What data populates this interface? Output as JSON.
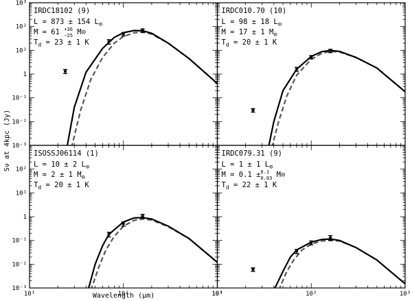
{
  "chart_data": {
    "type": "line",
    "xlabel": "Wavelength (μm)",
    "ylabel": "Sν at 4kpc (Jy)",
    "xscale": "log",
    "yscale": "log",
    "xlim": [
      10,
      1000
    ],
    "ylim": [
      0.001,
      1000
    ],
    "x_ticks": [
      "10¹",
      "10²",
      "10³"
    ],
    "y_ticks": [
      "10⁻³",
      "10⁻²",
      "10⁻¹",
      "1",
      "10¹",
      "10²",
      "10³"
    ],
    "series_styles": [
      {
        "style": "solid",
        "color": "#000000"
      },
      {
        "style": "dashed",
        "color": "#555555"
      }
    ],
    "panels": [
      {
        "title": "IRDC18102 (9)",
        "lines": [
          {
            "prefix": "L = ",
            "value": "873 ± 154 L",
            "sup": "",
            "sub": "",
            "unit": "⊙"
          },
          {
            "prefix": "M = ",
            "value": "61 ",
            "sup": "+36",
            "sub": "−25",
            "unit": " M⊙"
          },
          {
            "prefix": "T",
            "sub_d": "d",
            "value": " = 23 ± 1 K",
            "sup": "",
            "sub": "",
            "unit": ""
          }
        ],
        "points": [
          {
            "x": 24,
            "y": 1.3,
            "err": 0.25
          },
          {
            "x": 70,
            "y": 23,
            "err": 5
          },
          {
            "x": 100,
            "y": 48,
            "err": 8
          },
          {
            "x": 160,
            "y": 68,
            "err": 12
          }
        ],
        "model_solid": [
          [
            25,
            0.0008
          ],
          [
            30,
            0.04
          ],
          [
            40,
            1.2
          ],
          [
            60,
            12
          ],
          [
            80,
            35
          ],
          [
            100,
            55
          ],
          [
            130,
            68
          ],
          [
            160,
            66
          ],
          [
            200,
            52
          ],
          [
            300,
            20
          ],
          [
            500,
            4.5
          ],
          [
            1000,
            0.4
          ]
        ],
        "model_dashed": [
          [
            28,
            0.0008
          ],
          [
            35,
            0.03
          ],
          [
            45,
            0.6
          ],
          [
            60,
            5
          ],
          [
            80,
            20
          ],
          [
            100,
            38
          ],
          [
            130,
            55
          ],
          [
            160,
            58
          ],
          [
            200,
            48
          ],
          [
            300,
            20
          ],
          [
            500,
            4.5
          ],
          [
            1000,
            0.4
          ]
        ]
      },
      {
        "title": "IRDC010.70 (10)",
        "lines": [
          {
            "prefix": "L = ",
            "value": " 98 ± 18 L",
            "sup": "",
            "sub": "",
            "unit": "⊙"
          },
          {
            "prefix": "M = ",
            "value": "17 ± 1 M",
            "sup": "",
            "sub": "",
            "unit": "⊙"
          },
          {
            "prefix": "T",
            "sub_d": "d",
            "value": " = 20 ± 1 K",
            "sup": "",
            "sub": "",
            "unit": ""
          }
        ],
        "points": [
          {
            "x": 24,
            "y": 0.03,
            "err": 0.005
          },
          {
            "x": 70,
            "y": 1.6,
            "err": 0.3
          },
          {
            "x": 100,
            "y": 5.2,
            "err": 0.8
          },
          {
            "x": 160,
            "y": 9.5,
            "err": 1.5
          }
        ],
        "model_solid": [
          [
            35,
            0.0008
          ],
          [
            40,
            0.01
          ],
          [
            50,
            0.2
          ],
          [
            70,
            1.6
          ],
          [
            100,
            5.5
          ],
          [
            130,
            8.8
          ],
          [
            160,
            9.8
          ],
          [
            200,
            9
          ],
          [
            300,
            5
          ],
          [
            500,
            1.8
          ],
          [
            1000,
            0.18
          ]
        ],
        "model_dashed": [
          [
            38,
            0.0008
          ],
          [
            45,
            0.01
          ],
          [
            55,
            0.12
          ],
          [
            70,
            0.9
          ],
          [
            100,
            4.2
          ],
          [
            130,
            7.5
          ],
          [
            160,
            9
          ],
          [
            200,
            8.5
          ],
          [
            300,
            5
          ],
          [
            500,
            1.8
          ],
          [
            1000,
            0.18
          ]
        ]
      },
      {
        "title": "ISOSSJ06114 (1)",
        "lines": [
          {
            "prefix": "L = ",
            "value": " 10 ± 2 L",
            "sup": "",
            "sub": "",
            "unit": "⊙"
          },
          {
            "prefix": "M = ",
            "value": " 2 ± 1 M",
            "sup": "",
            "sub": "",
            "unit": "⊙"
          },
          {
            "prefix": "T",
            "sub_d": "d",
            "value": " = 20 ± 1 K",
            "sup": "",
            "sub": "",
            "unit": ""
          }
        ],
        "points": [
          {
            "x": 70,
            "y": 0.18,
            "err": 0.04
          },
          {
            "x": 100,
            "y": 0.5,
            "err": 0.1
          },
          {
            "x": 160,
            "y": 1.05,
            "err": 0.2
          }
        ],
        "model_solid": [
          [
            42,
            0.0008
          ],
          [
            50,
            0.01
          ],
          [
            60,
            0.06
          ],
          [
            70,
            0.18
          ],
          [
            100,
            0.6
          ],
          [
            130,
            0.88
          ],
          [
            160,
            0.92
          ],
          [
            200,
            0.8
          ],
          [
            300,
            0.4
          ],
          [
            500,
            0.12
          ],
          [
            1000,
            0.012
          ]
        ],
        "model_dashed": [
          [
            45,
            0.0008
          ],
          [
            55,
            0.008
          ],
          [
            65,
            0.04
          ],
          [
            80,
            0.15
          ],
          [
            100,
            0.4
          ],
          [
            130,
            0.7
          ],
          [
            160,
            0.8
          ],
          [
            200,
            0.72
          ],
          [
            300,
            0.38
          ],
          [
            500,
            0.12
          ],
          [
            1000,
            0.012
          ]
        ]
      },
      {
        "title": "IRDC079.31 (9)",
        "lines": [
          {
            "prefix": "L = ",
            "value": "1 ± 1 L",
            "sup": "",
            "sub": "",
            "unit": "⊙"
          },
          {
            "prefix": "M = ",
            "value": "0.1 ±",
            "sup": "0.1",
            "sub": "0.03",
            "unit": " M⊙"
          },
          {
            "prefix": "T",
            "sub_d": "d",
            "value": " = 22 ± 1 K",
            "sup": "",
            "sub": "",
            "unit": ""
          }
        ],
        "points": [
          {
            "x": 24,
            "y": 0.006,
            "err": 0.001
          },
          {
            "x": 70,
            "y": 0.035,
            "err": 0.007
          },
          {
            "x": 100,
            "y": 0.08,
            "err": 0.015
          },
          {
            "x": 160,
            "y": 0.13,
            "err": 0.03
          }
        ],
        "model_solid": [
          [
            40,
            0.0008
          ],
          [
            50,
            0.005
          ],
          [
            60,
            0.02
          ],
          [
            70,
            0.04
          ],
          [
            100,
            0.085
          ],
          [
            130,
            0.11
          ],
          [
            160,
            0.115
          ],
          [
            200,
            0.1
          ],
          [
            300,
            0.05
          ],
          [
            500,
            0.015
          ],
          [
            1000,
            0.0015
          ]
        ],
        "model_dashed": [
          [
            45,
            0.0008
          ],
          [
            55,
            0.005
          ],
          [
            65,
            0.015
          ],
          [
            80,
            0.04
          ],
          [
            100,
            0.07
          ],
          [
            130,
            0.095
          ],
          [
            160,
            0.1
          ],
          [
            200,
            0.095
          ],
          [
            300,
            0.05
          ],
          [
            500,
            0.015
          ],
          [
            1000,
            0.0015
          ]
        ]
      }
    ]
  }
}
